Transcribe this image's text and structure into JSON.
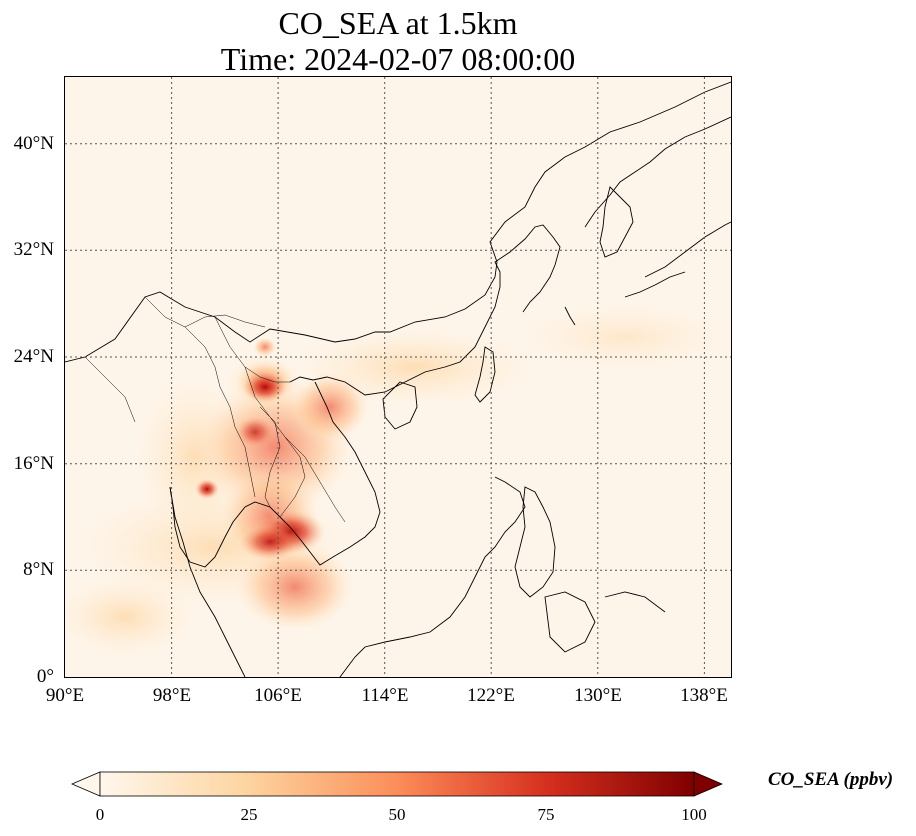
{
  "title": {
    "line1": "CO_SEA at 1.5km",
    "line2": "Time: 2024-02-07 08:00:00"
  },
  "map": {
    "extent_lon": [
      90,
      140
    ],
    "extent_lat": [
      0,
      45
    ],
    "lat_ticks": [
      "0°",
      "8°N",
      "16°N",
      "24°N",
      "32°N",
      "40°N"
    ],
    "lon_ticks": [
      "90°E",
      "98°E",
      "106°E",
      "114°E",
      "122°E",
      "130°E",
      "138°E"
    ],
    "gridlines": true
  },
  "colorbar": {
    "label": "CO_SEA (ppbv)",
    "ticks": [
      "0",
      "25",
      "50",
      "75",
      "100"
    ],
    "range": [
      0,
      100
    ],
    "colormap": "OrRd",
    "colors": [
      "#fff7ec",
      "#fdd49e",
      "#fc8d59",
      "#d7301f",
      "#7f0000"
    ]
  }
}
